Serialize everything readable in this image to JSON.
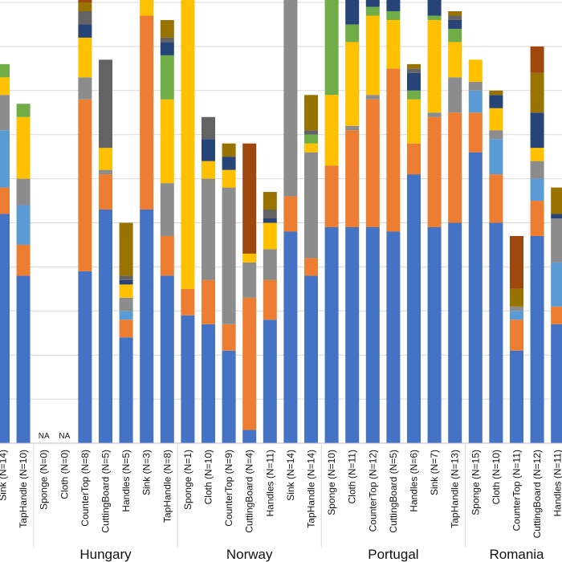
{
  "chart_data": {
    "type": "bar",
    "stacked": true,
    "grid": true,
    "ylim": [
      0,
      100
    ],
    "groups": [
      {
        "name": "",
        "categories": [
          {
            "label": "Sink (N=14)",
            "values": [
              52,
              6,
              13,
              8,
              4,
              3,
              0,
              0,
              0,
              0
            ]
          },
          {
            "label": "TapHandle (N=10)",
            "values": [
              38,
              7,
              9,
              6,
              14,
              3,
              0,
              0,
              0,
              0
            ]
          }
        ]
      },
      {
        "name": "Hungary",
        "categories": [
          {
            "label": "Sponge (N=0)",
            "values": [],
            "na": "NA"
          },
          {
            "label": "Cloth (N=0)",
            "values": [],
            "na": "NA"
          },
          {
            "label": "CounterTop (N=8)",
            "values": [
              39,
              39,
              0,
              5,
              9,
              0,
              3,
              3,
              2,
              1
            ]
          },
          {
            "label": "CuttingBoard (N=5)",
            "values": [
              53,
              8,
              0,
              1,
              5,
              0,
              0,
              20,
              0,
              0
            ]
          },
          {
            "label": "Handles (N=5)",
            "values": [
              24,
              4,
              2,
              3,
              3,
              0,
              1,
              1,
              12,
              0
            ]
          },
          {
            "label": "Sink (N=3)",
            "values": [
              53,
              44,
              0,
              0,
              9,
              0,
              1,
              2,
              0,
              0
            ]
          },
          {
            "label": "TapHandle (N=8)",
            "values": [
              38,
              9,
              0,
              12,
              19,
              10,
              3,
              1,
              4,
              0
            ]
          }
        ]
      },
      {
        "name": "Norway",
        "categories": [
          {
            "label": "Sponge (N=1)",
            "values": [
              29,
              6,
              0,
              0,
              67,
              0,
              1,
              0,
              0,
              0
            ]
          },
          {
            "label": "Cloth (N=10)",
            "values": [
              27,
              10,
              0,
              23,
              4,
              0,
              5,
              5,
              0,
              0
            ]
          },
          {
            "label": "CounterTop (N=9)",
            "values": [
              21,
              6,
              0,
              31,
              4,
              0,
              3,
              0,
              3,
              0
            ]
          },
          {
            "label": "CuttingBoard (N=4)",
            "values": [
              3,
              30,
              0,
              8,
              2,
              0,
              0,
              0,
              0,
              25
            ]
          },
          {
            "label": "Handles (N=11)",
            "values": [
              28,
              9,
              0,
              7,
              6,
              0,
              1,
              2,
              4,
              0
            ]
          },
          {
            "label": "Sink (N=14)",
            "values": [
              48,
              8,
              0,
              46,
              2,
              3,
              2,
              0,
              1,
              0
            ]
          },
          {
            "label": "TapHandle (N=14)",
            "values": [
              38,
              4,
              0,
              24,
              2,
              2,
              0,
              1,
              8,
              0
            ]
          }
        ]
      },
      {
        "name": "Portugal",
        "categories": [
          {
            "label": "Sponge (N=10)",
            "values": [
              49,
              14,
              0,
              0,
              16,
              22,
              3,
              0,
              0,
              0
            ]
          },
          {
            "label": "Cloth (N=11)",
            "values": [
              49,
              22,
              0,
              1,
              19,
              4,
              6,
              0,
              0,
              0
            ]
          },
          {
            "label": "CounterTop (N=12)",
            "values": [
              49,
              29,
              0,
              1,
              18,
              2,
              11,
              0,
              0,
              0
            ]
          },
          {
            "label": "CuttingBoard (N=5)",
            "values": [
              48,
              37,
              0,
              0,
              11,
              2,
              7,
              0,
              0,
              0
            ]
          },
          {
            "label": "Handles (N=6)",
            "values": [
              61,
              7,
              0,
              0,
              10,
              2,
              4,
              1,
              1,
              0
            ]
          },
          {
            "label": "Sink (N=7)",
            "values": [
              49,
              25,
              0,
              1,
              21,
              1,
              5,
              0,
              0,
              0
            ]
          },
          {
            "label": "TapHandle (N=13)",
            "values": [
              50,
              25,
              0,
              8,
              8,
              3,
              2,
              1,
              1,
              0
            ]
          }
        ]
      },
      {
        "name": "Romania",
        "categories": [
          {
            "label": "Sponge (N=15)",
            "values": [
              66,
              9,
              5,
              2,
              5,
              0,
              0,
              0,
              0,
              0
            ]
          },
          {
            "label": "Cloth (N=10)",
            "values": [
              50,
              11,
              8,
              2,
              5,
              0,
              3,
              0,
              1,
              0
            ]
          },
          {
            "label": "CounterTop (N=11)",
            "values": [
              21,
              7,
              2,
              1,
              0,
              0,
              0,
              0,
              4,
              12
            ]
          },
          {
            "label": "CuttingBoard (N=12)",
            "values": [
              47,
              8,
              5,
              4,
              3,
              0,
              8,
              0,
              9,
              6
            ]
          },
          {
            "label": "Handles (N=11)",
            "values": [
              27,
              4,
              10,
              10,
              0,
              0,
              1,
              0,
              6,
              0
            ]
          }
        ]
      }
    ],
    "colors": [
      "#4472c4",
      "#ed7d31",
      "#a5a5a5",
      "#8c8c8c",
      "#ffc000",
      "#70ad47",
      "#264478",
      "#636363",
      "#997300",
      "#9e480e"
    ],
    "series_colors": {
      "segment_colors": [
        "#4472c4",
        "#ed7d31",
        "#5b9bd5",
        "#8c8c8c",
        "#ffc000",
        "#70ad47",
        "#264478",
        "#636363",
        "#997300",
        "#9e480e"
      ]
    }
  }
}
